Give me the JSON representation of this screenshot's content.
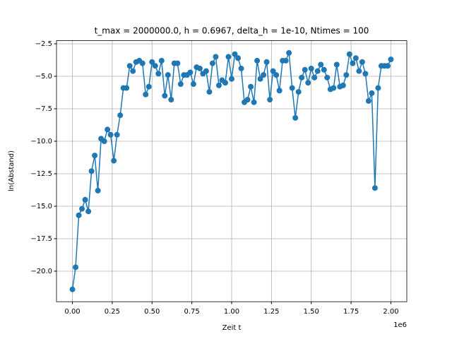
{
  "chart_data": {
    "type": "line",
    "title": "t_max = 2000000.0, h = 0.6967, delta_h = 1e-10, Ntimes = 100",
    "xlabel": "Zeit t",
    "ylabel": "ln(Abstand)",
    "x_offset_text": "1e6",
    "color": "#1f77b4",
    "grid": true,
    "x": [
      0,
      20000,
      40000,
      60000,
      80000,
      100000,
      120000,
      140000,
      160000,
      180000,
      200000,
      220000,
      240000,
      260000,
      280000,
      300000,
      320000,
      340000,
      360000,
      380000,
      400000,
      420000,
      440000,
      460000,
      480000,
      500000,
      520000,
      540000,
      560000,
      580000,
      600000,
      620000,
      640000,
      660000,
      680000,
      700000,
      720000,
      740000,
      760000,
      780000,
      800000,
      820000,
      840000,
      860000,
      880000,
      900000,
      920000,
      940000,
      960000,
      980000,
      1000000,
      1020000,
      1040000,
      1060000,
      1080000,
      1100000,
      1120000,
      1140000,
      1160000,
      1180000,
      1200000,
      1220000,
      1240000,
      1260000,
      1280000,
      1300000,
      1320000,
      1340000,
      1360000,
      1380000,
      1400000,
      1420000,
      1440000,
      1460000,
      1480000,
      1500000,
      1520000,
      1540000,
      1560000,
      1580000,
      1600000,
      1620000,
      1640000,
      1660000,
      1680000,
      1700000,
      1720000,
      1740000,
      1760000,
      1780000,
      1800000,
      1820000,
      1840000,
      1860000,
      1880000,
      1900000,
      1920000,
      1940000,
      1960000,
      1980000,
      2000000
    ],
    "values": [
      -21.4,
      -19.7,
      -15.7,
      -15.2,
      -14.5,
      -15.4,
      -12.3,
      -11.1,
      -13.8,
      -9.8,
      -10.0,
      -9.1,
      -9.5,
      -11.5,
      -9.5,
      -8.0,
      -5.9,
      -5.9,
      -4.2,
      -4.6,
      -3.9,
      -3.8,
      -4.0,
      -6.4,
      -5.8,
      -3.9,
      -4.2,
      -4.8,
      -3.8,
      -6.5,
      -4.9,
      -6.8,
      -4.0,
      -4.0,
      -5.6,
      -4.9,
      -4.9,
      -4.7,
      -5.6,
      -4.3,
      -4.4,
      -4.8,
      -4.6,
      -6.2,
      -4.0,
      -3.5,
      -5.7,
      -5.3,
      -5.5,
      -3.5,
      -5.2,
      -3.3,
      -3.6,
      -4.4,
      -7.0,
      -6.8,
      -5.8,
      -7.0,
      -3.8,
      -5.2,
      -4.9,
      -3.9,
      -6.8,
      -4.6,
      -4.9,
      -6.1,
      -3.8,
      -3.8,
      -3.2,
      -5.9,
      -8.2,
      -6.2,
      -5.1,
      -4.5,
      -5.5,
      -4.4,
      -5.1,
      -4.6,
      -4.1,
      -4.5,
      -5.1,
      -6.0,
      -5.9,
      -4.1,
      -5.8,
      -5.7,
      -4.9,
      -3.3,
      -4.0,
      -3.6,
      -4.6,
      -3.9,
      -4.8,
      -6.9,
      -6.3,
      -13.6,
      -5.9,
      -4.2,
      -4.2,
      -4.2,
      -3.7
    ],
    "xlim": [
      -100000,
      2100000
    ],
    "xticks": [
      {
        "value": 0,
        "label": "0.00"
      },
      {
        "value": 250000,
        "label": "0.25"
      },
      {
        "value": 500000,
        "label": "0.50"
      },
      {
        "value": 750000,
        "label": "0.75"
      },
      {
        "value": 1000000,
        "label": "1.00"
      },
      {
        "value": 1250000,
        "label": "1.25"
      },
      {
        "value": 1500000,
        "label": "1.50"
      },
      {
        "value": 1750000,
        "label": "1.75"
      },
      {
        "value": 2000000,
        "label": "2.00"
      }
    ],
    "ylim": [
      -22.35,
      -2.26
    ],
    "yticks": [
      {
        "value": -20,
        "label": "−20.0"
      },
      {
        "value": -17.5,
        "label": "−17.5"
      },
      {
        "value": -15,
        "label": "−15.0"
      },
      {
        "value": -12.5,
        "label": "−12.5"
      },
      {
        "value": -10,
        "label": "−10.0"
      },
      {
        "value": -7.5,
        "label": "−7.5"
      },
      {
        "value": -5,
        "label": "−5.0"
      },
      {
        "value": -2.5,
        "label": "−2.5"
      }
    ]
  }
}
